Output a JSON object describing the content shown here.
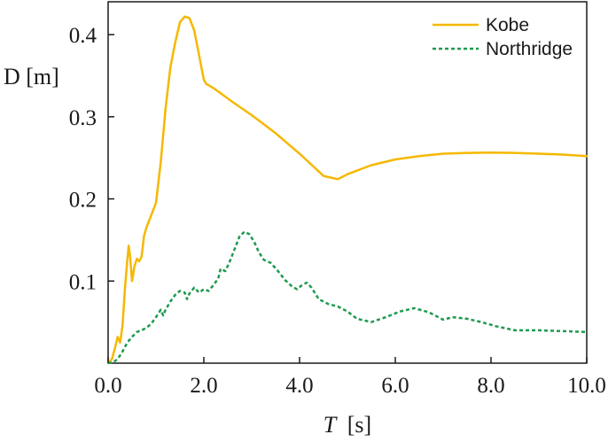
{
  "chart_data": {
    "type": "line",
    "xlabel_var": "T",
    "xlabel_unit": "[s]",
    "ylabel": "D [m]",
    "xlim": [
      0,
      10
    ],
    "ylim": [
      0,
      0.44
    ],
    "xticks": [
      0,
      2,
      4,
      6,
      8,
      10
    ],
    "xtick_labels": [
      "0.0",
      "2.0",
      "4.0",
      "6.0",
      "8.0",
      "10.0"
    ],
    "yticks": [
      0.1,
      0.2,
      0.3,
      0.4
    ],
    "ytick_labels": [
      "0.1",
      "0.2",
      "0.3",
      "0.4"
    ],
    "legend_position": "top-right",
    "grid": false,
    "series": [
      {
        "name": "Kobe",
        "color": "#f5b800",
        "dash": "solid",
        "points": [
          [
            0.0,
            0.0
          ],
          [
            0.08,
            0.005
          ],
          [
            0.15,
            0.02
          ],
          [
            0.2,
            0.032
          ],
          [
            0.25,
            0.025
          ],
          [
            0.3,
            0.045
          ],
          [
            0.35,
            0.09
          ],
          [
            0.4,
            0.125
          ],
          [
            0.43,
            0.143
          ],
          [
            0.46,
            0.13
          ],
          [
            0.5,
            0.1
          ],
          [
            0.55,
            0.118
          ],
          [
            0.6,
            0.127
          ],
          [
            0.65,
            0.124
          ],
          [
            0.7,
            0.13
          ],
          [
            0.75,
            0.155
          ],
          [
            0.8,
            0.165
          ],
          [
            0.9,
            0.18
          ],
          [
            1.0,
            0.195
          ],
          [
            1.1,
            0.245
          ],
          [
            1.2,
            0.31
          ],
          [
            1.3,
            0.36
          ],
          [
            1.4,
            0.39
          ],
          [
            1.5,
            0.415
          ],
          [
            1.6,
            0.422
          ],
          [
            1.7,
            0.42
          ],
          [
            1.8,
            0.405
          ],
          [
            1.9,
            0.375
          ],
          [
            2.0,
            0.345
          ],
          [
            2.05,
            0.34
          ],
          [
            2.2,
            0.335
          ],
          [
            2.6,
            0.318
          ],
          [
            3.0,
            0.302
          ],
          [
            3.5,
            0.28
          ],
          [
            4.0,
            0.255
          ],
          [
            4.5,
            0.228
          ],
          [
            4.8,
            0.224
          ],
          [
            5.0,
            0.23
          ],
          [
            5.5,
            0.241
          ],
          [
            6.0,
            0.248
          ],
          [
            6.5,
            0.252
          ],
          [
            7.0,
            0.255
          ],
          [
            7.5,
            0.256
          ],
          [
            8.0,
            0.2565
          ],
          [
            8.5,
            0.256
          ],
          [
            9.0,
            0.255
          ],
          [
            9.5,
            0.254
          ],
          [
            10.0,
            0.252
          ]
        ]
      },
      {
        "name": "Northridge",
        "color": "#1e9a50",
        "dash": "4,3",
        "points": [
          [
            0.0,
            0.0
          ],
          [
            0.1,
            0.001
          ],
          [
            0.2,
            0.005
          ],
          [
            0.3,
            0.014
          ],
          [
            0.4,
            0.025
          ],
          [
            0.5,
            0.032
          ],
          [
            0.6,
            0.038
          ],
          [
            0.7,
            0.04
          ],
          [
            0.8,
            0.043
          ],
          [
            0.9,
            0.048
          ],
          [
            1.0,
            0.056
          ],
          [
            1.1,
            0.065
          ],
          [
            1.15,
            0.058
          ],
          [
            1.2,
            0.065
          ],
          [
            1.3,
            0.075
          ],
          [
            1.4,
            0.083
          ],
          [
            1.5,
            0.088
          ],
          [
            1.6,
            0.086
          ],
          [
            1.65,
            0.078
          ],
          [
            1.7,
            0.085
          ],
          [
            1.8,
            0.092
          ],
          [
            1.9,
            0.086
          ],
          [
            2.0,
            0.09
          ],
          [
            2.1,
            0.088
          ],
          [
            2.2,
            0.095
          ],
          [
            2.3,
            0.103
          ],
          [
            2.35,
            0.115
          ],
          [
            2.45,
            0.112
          ],
          [
            2.55,
            0.125
          ],
          [
            2.65,
            0.14
          ],
          [
            2.75,
            0.155
          ],
          [
            2.85,
            0.16
          ],
          [
            2.95,
            0.157
          ],
          [
            3.05,
            0.148
          ],
          [
            3.15,
            0.135
          ],
          [
            3.25,
            0.126
          ],
          [
            3.4,
            0.122
          ],
          [
            3.55,
            0.112
          ],
          [
            3.7,
            0.101
          ],
          [
            3.85,
            0.093
          ],
          [
            3.95,
            0.09
          ],
          [
            4.05,
            0.095
          ],
          [
            4.15,
            0.098
          ],
          [
            4.25,
            0.092
          ],
          [
            4.4,
            0.078
          ],
          [
            4.6,
            0.072
          ],
          [
            4.8,
            0.069
          ],
          [
            5.0,
            0.063
          ],
          [
            5.2,
            0.054
          ],
          [
            5.5,
            0.05
          ],
          [
            5.8,
            0.056
          ],
          [
            6.1,
            0.063
          ],
          [
            6.4,
            0.067
          ],
          [
            6.7,
            0.062
          ],
          [
            7.0,
            0.053
          ],
          [
            7.2,
            0.056
          ],
          [
            7.5,
            0.054
          ],
          [
            7.8,
            0.05
          ],
          [
            8.1,
            0.045
          ],
          [
            8.5,
            0.04
          ],
          [
            9.0,
            0.04
          ],
          [
            9.5,
            0.039
          ],
          [
            10.0,
            0.038
          ]
        ]
      }
    ]
  }
}
